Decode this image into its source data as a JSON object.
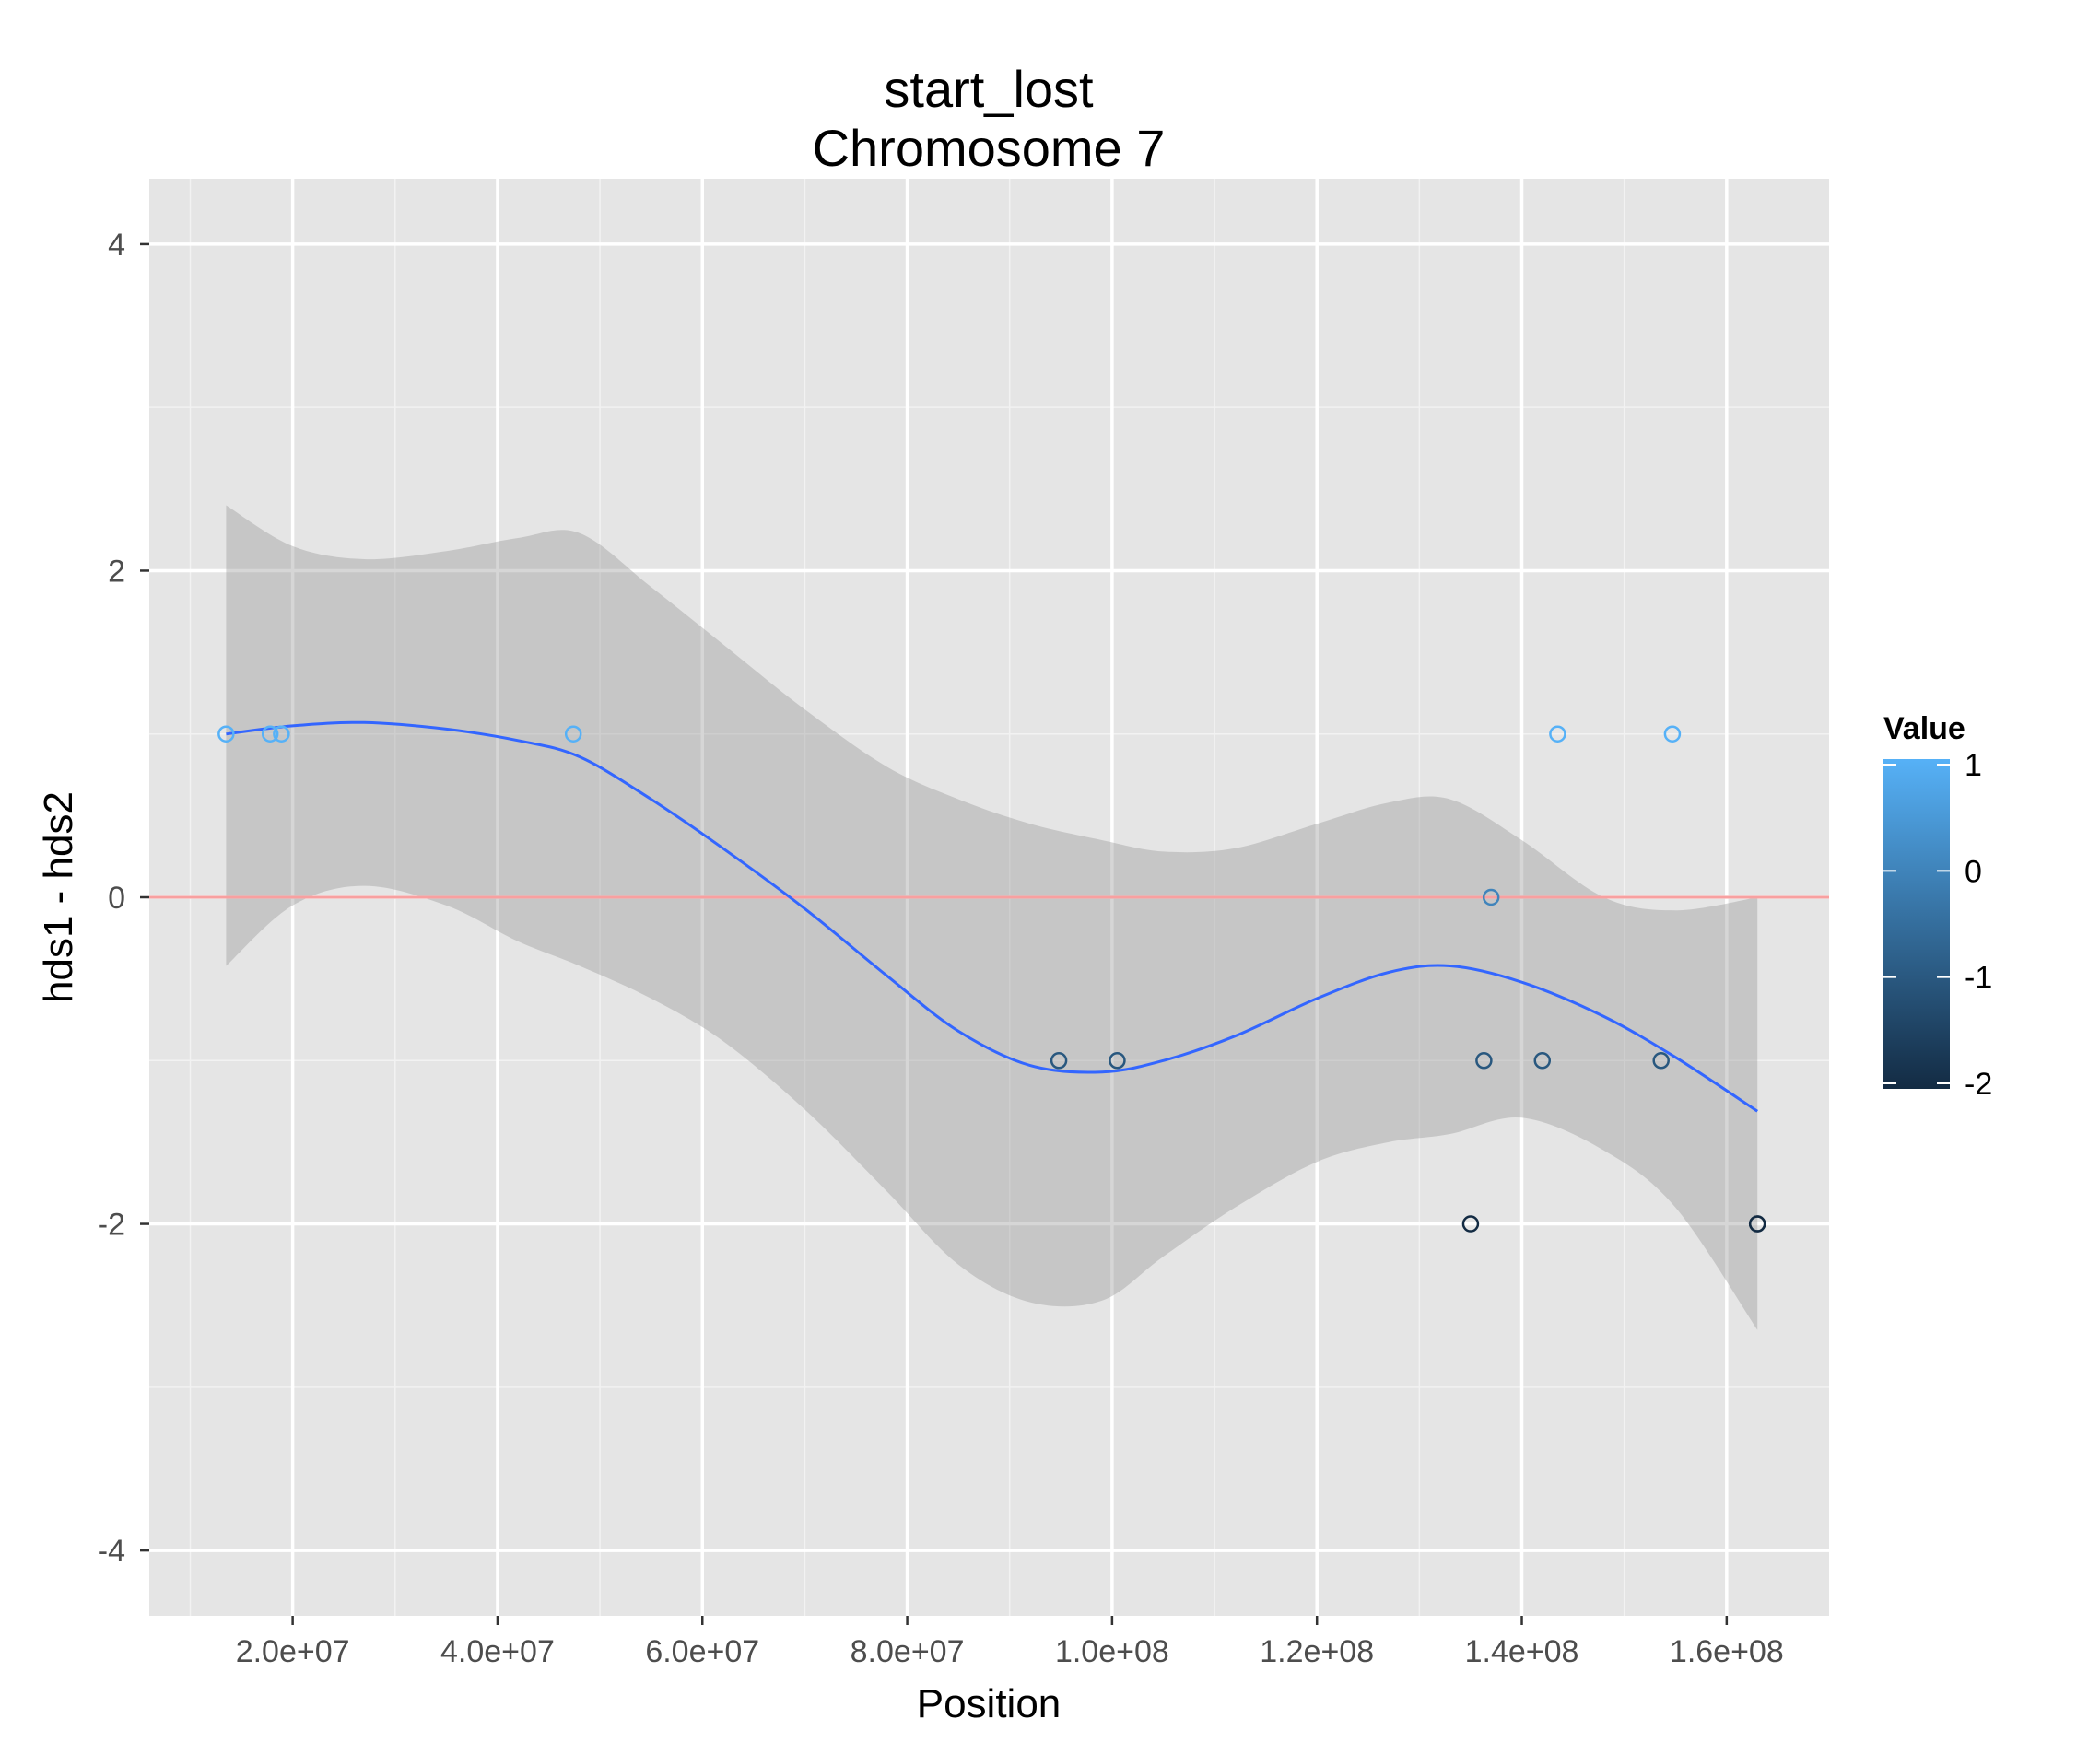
{
  "chart_data": {
    "type": "scatter",
    "title": "start_lost",
    "subtitle": "Chromosome 7",
    "xlabel": "Position",
    "ylabel": "hds1 - hds2",
    "xlim": [
      6000000,
      170000000
    ],
    "ylim": [
      -4.4,
      4.4
    ],
    "x_ticks": [
      20000000,
      40000000,
      60000000,
      80000000,
      100000000,
      120000000,
      140000000,
      160000000
    ],
    "x_tick_labels": [
      "2.0e+07",
      "4.0e+07",
      "6.0e+07",
      "8.0e+07",
      "1.0e+08",
      "1.2e+08",
      "1.4e+08",
      "1.6e+08"
    ],
    "y_ticks": [
      -4,
      -2,
      0,
      2,
      4
    ],
    "y_tick_labels": [
      "-4",
      "-2",
      "0",
      "2",
      "4"
    ],
    "grid": true,
    "points": [
      {
        "x": 13500000,
        "y": 1
      },
      {
        "x": 17800000,
        "y": 1
      },
      {
        "x": 18900000,
        "y": 1
      },
      {
        "x": 47400000,
        "y": 1
      },
      {
        "x": 94800000,
        "y": -1
      },
      {
        "x": 100500000,
        "y": -1
      },
      {
        "x": 135000000,
        "y": -2
      },
      {
        "x": 136300000,
        "y": -1
      },
      {
        "x": 137000000,
        "y": 0
      },
      {
        "x": 142000000,
        "y": -1
      },
      {
        "x": 143500000,
        "y": 1
      },
      {
        "x": 153600000,
        "y": -1
      },
      {
        "x": 154700000,
        "y": 1
      },
      {
        "x": 163000000,
        "y": -2
      },
      {
        "x": 163000000,
        "y": -2
      }
    ],
    "smooth": {
      "x": [
        13500000,
        20000000,
        27000000,
        35000000,
        42000000,
        48000000,
        55000000,
        62000000,
        70000000,
        78000000,
        85000000,
        92000000,
        99000000,
        105000000,
        112000000,
        120000000,
        127000000,
        133000000,
        140000000,
        148000000,
        155000000,
        163000000
      ],
      "y": [
        1.0,
        1.05,
        1.07,
        1.03,
        0.96,
        0.86,
        0.6,
        0.3,
        -0.07,
        -0.48,
        -0.82,
        -1.03,
        -1.07,
        -1.0,
        -0.85,
        -0.62,
        -0.46,
        -0.42,
        -0.52,
        -0.73,
        -0.98,
        -1.31
      ],
      "upper": [
        2.4,
        2.15,
        2.07,
        2.12,
        2.2,
        2.23,
        1.9,
        1.55,
        1.15,
        0.8,
        0.6,
        0.45,
        0.35,
        0.28,
        0.3,
        0.45,
        0.58,
        0.6,
        0.35,
        0.0,
        -0.08,
        0.0
      ],
      "lower": [
        -0.42,
        -0.05,
        0.07,
        -0.05,
        -0.27,
        -0.42,
        -0.62,
        -0.88,
        -1.3,
        -1.8,
        -2.25,
        -2.48,
        -2.47,
        -2.2,
        -1.9,
        -1.62,
        -1.5,
        -1.45,
        -1.35,
        -1.55,
        -1.9,
        -2.65
      ],
      "color": "#3366ff"
    },
    "hline": {
      "y": 0,
      "color": "#f8a0a0"
    },
    "legend": {
      "title": "Value",
      "position": "right",
      "ticks": [
        1,
        0,
        -1,
        -2
      ],
      "tick_labels": [
        "1",
        "0",
        "-1",
        "-2"
      ],
      "low_color": "#132b43",
      "high_color": "#56b1f7"
    },
    "panel_background": "#e5e5e5",
    "grid_color": "#ffffff"
  }
}
